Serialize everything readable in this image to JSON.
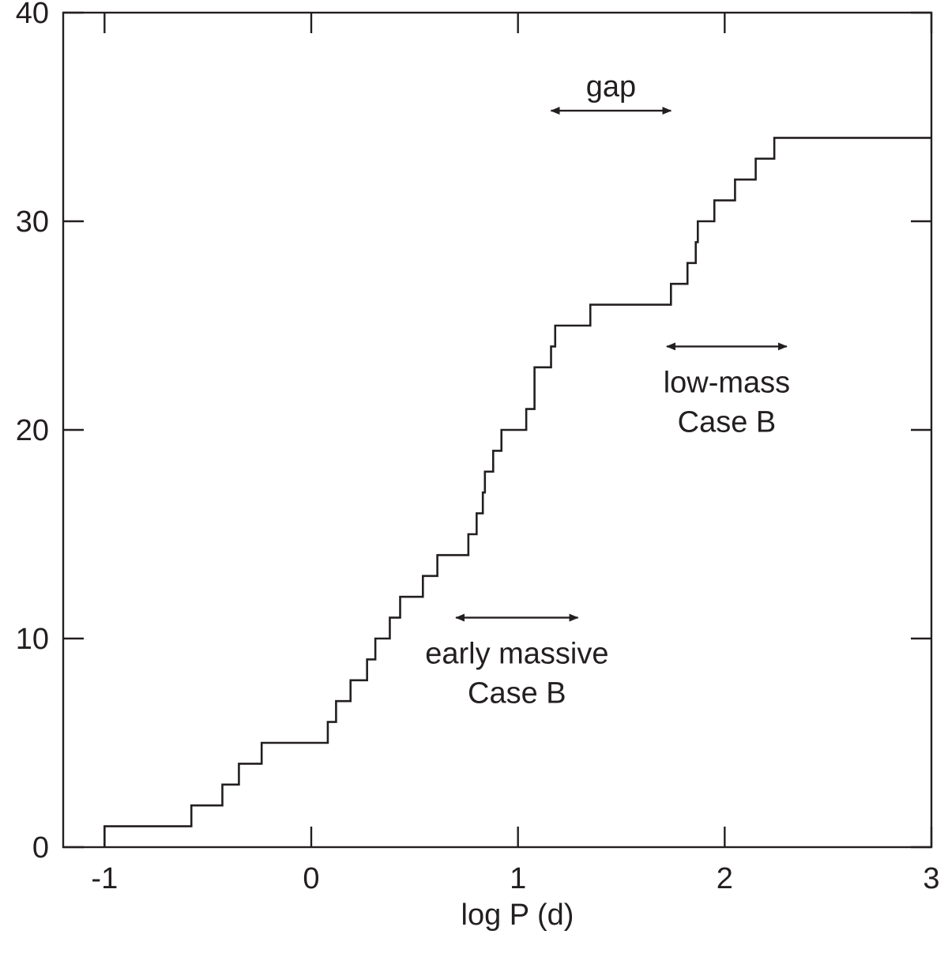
{
  "chart_data": {
    "type": "line",
    "step": true,
    "title": "",
    "xlabel": "log P (d)",
    "ylabel": "",
    "xlim": [
      -1.2,
      3
    ],
    "ylim": [
      0,
      40
    ],
    "xticks": [
      -1,
      0,
      1,
      2,
      3
    ],
    "xtick_labels": [
      "-1",
      "0",
      "1",
      "2",
      "3"
    ],
    "yticks": [
      0,
      10,
      20,
      30,
      40
    ],
    "ytick_labels": [
      "0",
      "10",
      "20",
      "30",
      "40"
    ],
    "grid": false,
    "line_color": "#231f20",
    "series": [
      {
        "x": [
          -1.0,
          -0.58,
          -0.43,
          -0.35,
          -0.24,
          0.08,
          0.12,
          0.19,
          0.27,
          0.31,
          0.38,
          0.43,
          0.54,
          0.61,
          0.76,
          0.8,
          0.83,
          0.84,
          0.88,
          0.92,
          1.04,
          1.08,
          1.16,
          1.18,
          1.35,
          1.74,
          1.82,
          1.86,
          1.87,
          1.95,
          2.05,
          2.15,
          2.24
        ],
        "y": [
          1,
          2,
          3,
          4,
          5,
          6,
          7,
          8,
          9,
          10,
          11,
          12,
          13,
          14,
          15,
          16,
          17,
          18,
          19,
          20,
          21,
          23,
          24,
          25,
          26,
          27,
          28,
          29,
          30,
          31,
          32,
          33,
          34
        ],
        "x_end": 3
      }
    ],
    "annotations": [
      {
        "text": [
          "gap"
        ],
        "arrow": [
          1.16,
          1.74
        ],
        "arrow_y": 35.3
      },
      {
        "text": [
          "low-mass",
          "Case B"
        ],
        "arrow": [
          1.72,
          2.3
        ],
        "arrow_y": 24.0
      },
      {
        "text": [
          "early massive",
          "Case B"
        ],
        "arrow": [
          0.7,
          1.29
        ],
        "arrow_y": 11.0
      }
    ]
  }
}
